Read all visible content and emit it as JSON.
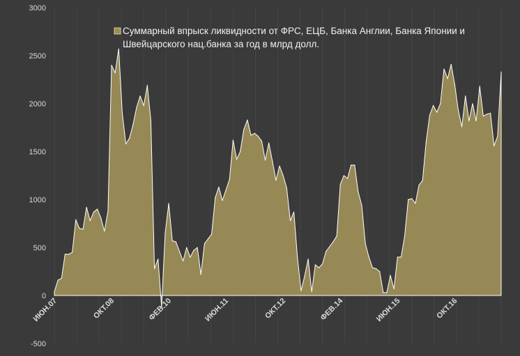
{
  "chart_data": {
    "type": "area",
    "title": "",
    "xlabel": "",
    "ylabel": "",
    "ylim": [
      -500,
      3000
    ],
    "yticks": [
      3000,
      2500,
      2000,
      1500,
      1000,
      500,
      0,
      -500
    ],
    "xticks": [
      {
        "index": 0,
        "label": "ИЮН.07"
      },
      {
        "index": 16,
        "label": "ОКТ.08"
      },
      {
        "index": 32,
        "label": "ФЕВ.10"
      },
      {
        "index": 48,
        "label": "ИЮН.11"
      },
      {
        "index": 64,
        "label": "ОКТ.12"
      },
      {
        "index": 80,
        "label": "ФЕВ.14"
      },
      {
        "index": 96,
        "label": "ИЮН.15"
      },
      {
        "index": 112,
        "label": "ОКТ.16"
      }
    ],
    "grid": {
      "vertical": true,
      "horizontal": false
    },
    "legend": "top-center",
    "series": [
      {
        "name": "Суммарный впрыск ликвидности от ФРС, ЕЦБ, Банка Англии, Банка Японии и Швейцарского нац.банка за год в млрд долл.",
        "fill": "#9b8c56",
        "stroke": "#ffffff",
        "values": [
          40,
          160,
          180,
          430,
          430,
          450,
          790,
          700,
          690,
          920,
          780,
          870,
          900,
          810,
          670,
          880,
          2400,
          2320,
          2570,
          1900,
          1580,
          1640,
          1780,
          1960,
          2080,
          1980,
          2190,
          1820,
          280,
          380,
          -120,
          650,
          960,
          570,
          560,
          460,
          360,
          500,
          400,
          470,
          500,
          220,
          540,
          590,
          640,
          1020,
          1130,
          990,
          1100,
          1210,
          1620,
          1420,
          1500,
          1730,
          1830,
          1670,
          1690,
          1660,
          1610,
          1410,
          1590,
          1400,
          1200,
          1350,
          1250,
          1120,
          780,
          870,
          400,
          50,
          200,
          380,
          40,
          320,
          290,
          330,
          460,
          510,
          560,
          620,
          1160,
          1250,
          1220,
          1360,
          1360,
          1080,
          940,
          540,
          400,
          290,
          280,
          250,
          30,
          30,
          210,
          70,
          400,
          400,
          620,
          1000,
          1010,
          960,
          1150,
          1200,
          1600,
          1880,
          1980,
          1910,
          2000,
          2360,
          2260,
          2410,
          2200,
          1930,
          1760,
          2080,
          1820,
          2000,
          1820,
          2180,
          1870,
          1890,
          1900,
          1560,
          1660,
          2330
        ]
      }
    ]
  }
}
